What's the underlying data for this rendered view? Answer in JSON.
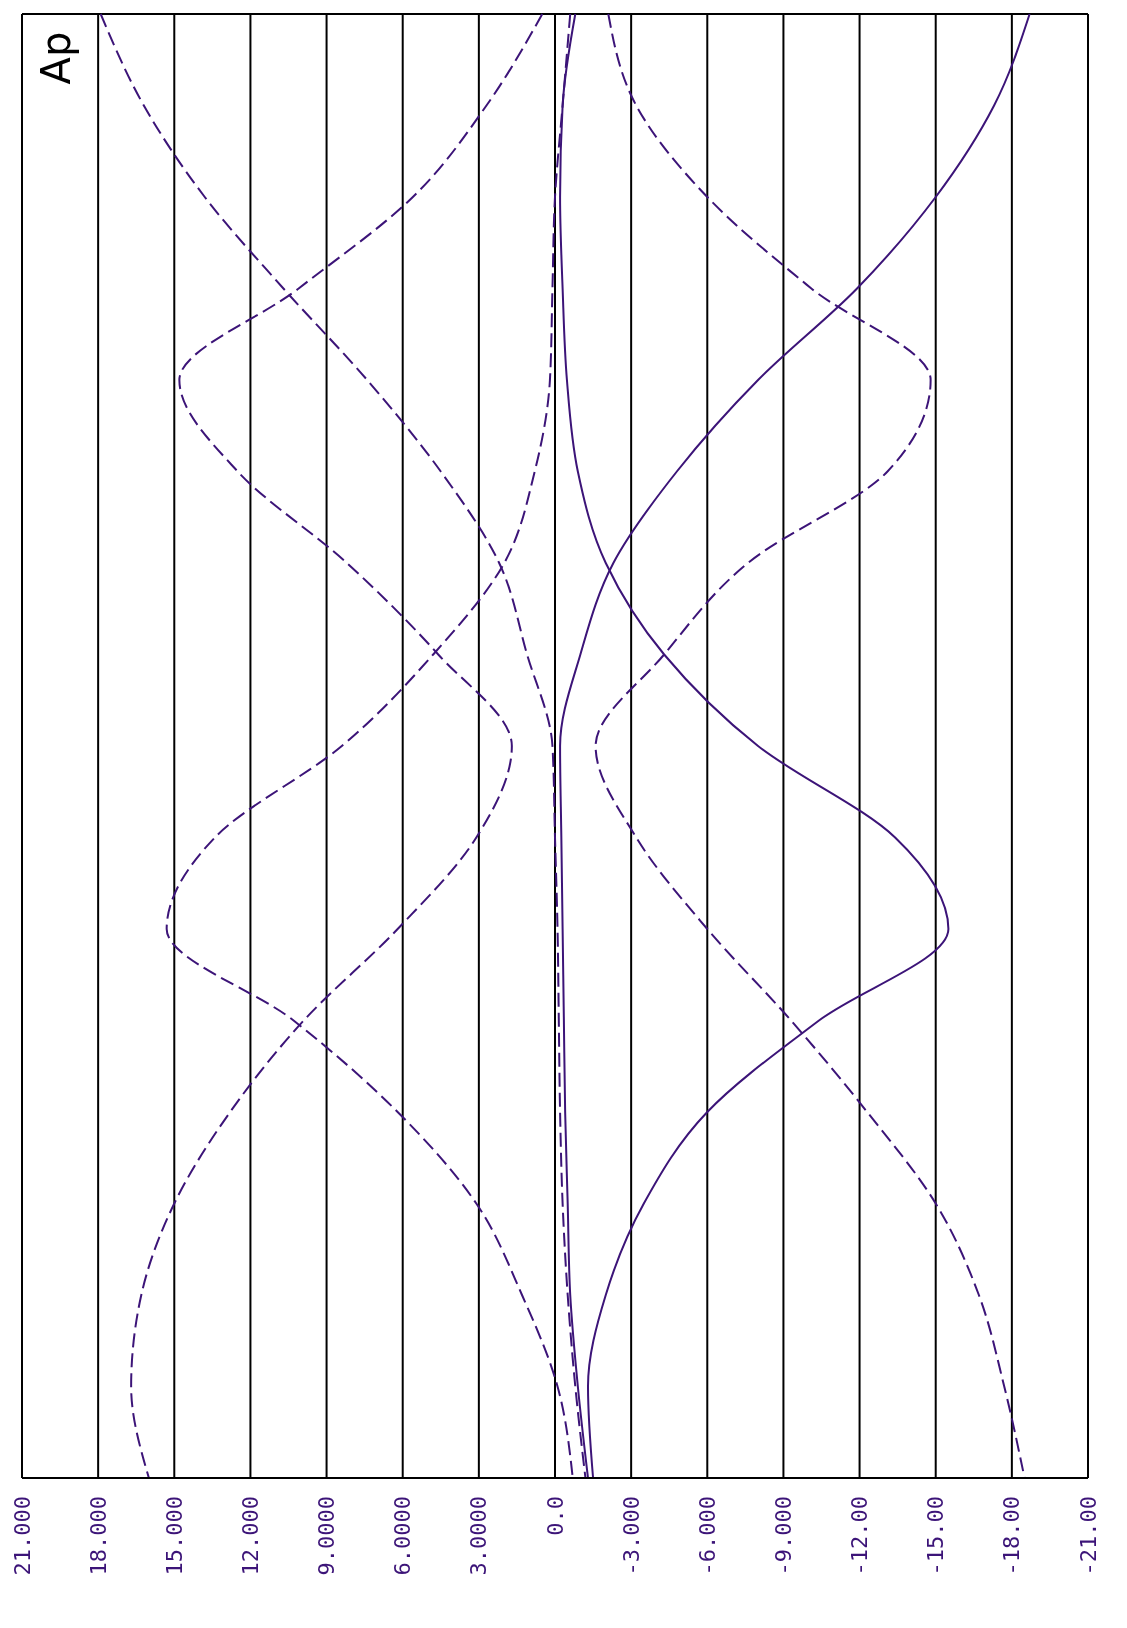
{
  "chart_data": {
    "type": "line",
    "orientation": "horizontal",
    "annotations": [
      "Ap"
    ],
    "categories": [
      null,
      null,
      null,
      null,
      null,
      null,
      null,
      null,
      null,
      null,
      null,
      null,
      null,
      null,
      null,
      null,
      null
    ],
    "series": [
      {
        "color": "#3c1478",
        "line_style": "dashed",
        "values": [
          17.9,
          16.2,
          13.8,
          10.7,
          7.4,
          4.5,
          2.2,
          1.1,
          0.1,
          0,
          -0.1,
          -0.15,
          -0.2,
          -0.3,
          -0.5,
          -0.8,
          -1.2
        ]
      },
      {
        "color": "#3c1478",
        "line_style": "dashed",
        "values": [
          0.5,
          2.7,
          5.6,
          10.1,
          14.8,
          12.5,
          8.2,
          4.6,
          1.7,
          3.1,
          6.2,
          9.9,
          12.8,
          15,
          16.3,
          16.7,
          16
        ]
      },
      {
        "color": "#3c1478",
        "line_style": "dashed",
        "values": [
          -0.6,
          -0.3,
          0,
          0.1,
          0.2,
          0.8,
          2,
          4.8,
          8.4,
          13.4,
          15.3,
          10.3,
          6.2,
          3.1,
          1.3,
          -0.1,
          -0.7
        ]
      },
      {
        "color": "#3c1478",
        "line_style": "dashed",
        "values": [
          -2.1,
          -3.2,
          -6,
          -10.1,
          -14.8,
          -13.1,
          -7.6,
          -4.3,
          -1.6,
          -3.2,
          -6,
          -9.3,
          -12.3,
          -15,
          -16.7,
          -17.7,
          -18.5
        ]
      },
      {
        "color": "#3c1478",
        "line_style": "solid",
        "values": [
          -18.7,
          -17.3,
          -15,
          -11.9,
          -8,
          -4.8,
          -2.3,
          -1,
          -0.2,
          -0.25,
          -0.3,
          -0.35,
          -0.4,
          -0.5,
          -0.6,
          -0.9,
          -1.3
        ]
      },
      {
        "color": "#3c1478",
        "line_style": "solid",
        "values": [
          -0.8,
          -0.3,
          -0.2,
          -0.3,
          -0.47,
          -0.9,
          -2,
          -4.3,
          -8,
          -13.4,
          -15.5,
          -10.4,
          -6,
          -3.5,
          -2,
          -1.3,
          -1.5
        ]
      }
    ],
    "xlim": [
      21,
      -21
    ],
    "xticks": [
      {
        "value": 21,
        "label": "21.000"
      },
      {
        "value": 18,
        "label": "18.000"
      },
      {
        "value": 15,
        "label": "15.000"
      },
      {
        "value": 12,
        "label": "12.000"
      },
      {
        "value": 9,
        "label": "9.0000"
      },
      {
        "value": 6,
        "label": "6.0000"
      },
      {
        "value": 3,
        "label": "3.0000"
      },
      {
        "value": 0,
        "label": "0.0"
      },
      {
        "value": -3,
        "label": "-3.000"
      },
      {
        "value": -6,
        "label": "-6.000"
      },
      {
        "value": -9,
        "label": "-9.000"
      },
      {
        "value": -12,
        "label": "-12.00"
      },
      {
        "value": -15,
        "label": "-15.00"
      },
      {
        "value": -18,
        "label": "-18.00"
      },
      {
        "value": -21,
        "label": "-21.00"
      }
    ],
    "tick_labels": "x",
    "grid": true
  }
}
